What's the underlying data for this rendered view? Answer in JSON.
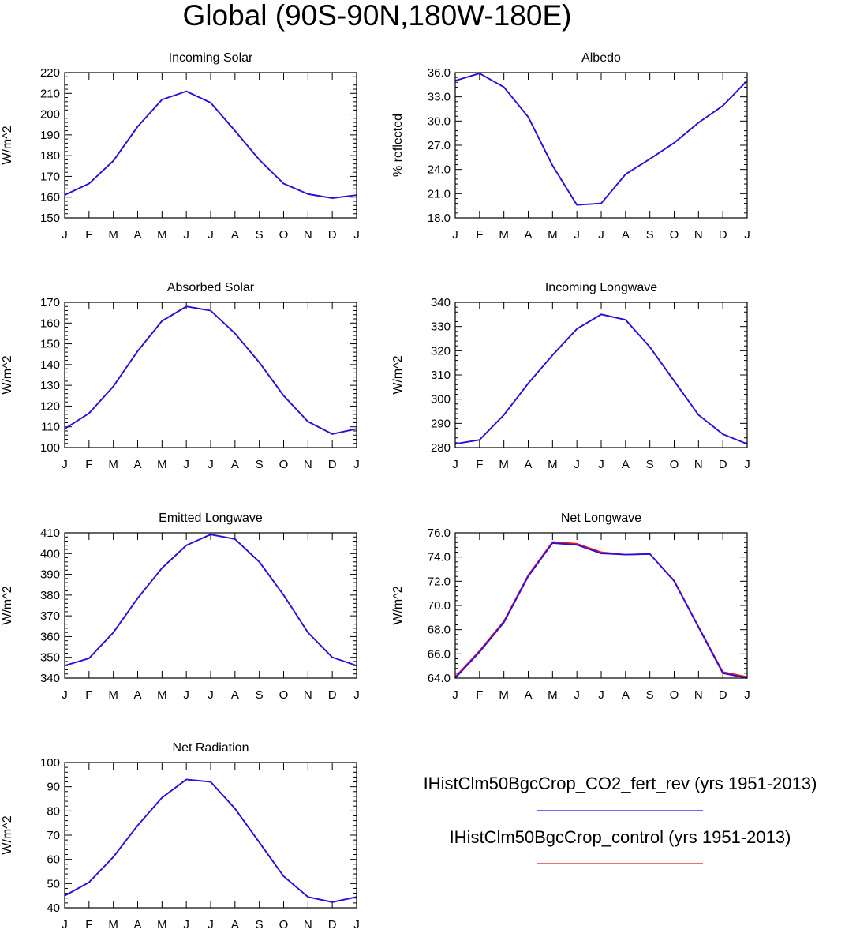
{
  "title": "Global (90S-90N,180W-180E)",
  "legend": [
    {
      "label": "IHistClm50BgcCrop_CO2_fert_rev (yrs 1951-2013)",
      "color": "#2b0ce6"
    },
    {
      "label": "IHistClm50BgcCrop_control (yrs 1951-2013)",
      "color": "#e11a1a"
    }
  ],
  "chart_data": [
    {
      "type": "line",
      "title": "Incoming Solar",
      "ylabel": "W/m^2",
      "categories": [
        "J",
        "F",
        "M",
        "A",
        "M",
        "J",
        "J",
        "A",
        "S",
        "O",
        "N",
        "D",
        "J"
      ],
      "ylim": [
        150,
        220
      ],
      "yticks": [
        "150",
        "160",
        "170",
        "180",
        "190",
        "200",
        "210",
        "220"
      ],
      "series": [
        {
          "name": "IHistClm50BgcCrop_CO2_fert_rev (yrs 1951-2013)",
          "color": "#2b0ce6",
          "values": [
            161,
            166.5,
            177.5,
            194,
            207,
            211,
            205.5,
            192,
            178,
            166.5,
            161.5,
            159.5,
            161
          ]
        },
        {
          "name": "IHistClm50BgcCrop_control (yrs 1951-2013)",
          "color": "#e11a1a",
          "values": [
            161,
            166.5,
            177.5,
            194,
            207,
            211,
            205.5,
            192,
            178,
            166.5,
            161.5,
            159.5,
            161
          ]
        }
      ]
    },
    {
      "type": "line",
      "title": "Albedo",
      "ylabel": "% reflected",
      "categories": [
        "J",
        "F",
        "M",
        "A",
        "M",
        "J",
        "J",
        "A",
        "S",
        "O",
        "N",
        "D",
        "J"
      ],
      "ylim": [
        18,
        36
      ],
      "yticks": [
        "18.0",
        "21.0",
        "24.0",
        "27.0",
        "30.0",
        "33.0",
        "36.0"
      ],
      "series": [
        {
          "name": "IHistClm50BgcCrop_CO2_fert_rev (yrs 1951-2013)",
          "color": "#2b0ce6",
          "values": [
            35.0,
            35.9,
            34.2,
            30.5,
            24.5,
            19.6,
            19.8,
            23.4,
            25.3,
            27.3,
            29.8,
            31.9,
            35.0
          ]
        },
        {
          "name": "IHistClm50BgcCrop_control (yrs 1951-2013)",
          "color": "#e11a1a",
          "values": [
            35.0,
            35.9,
            34.2,
            30.5,
            24.5,
            19.6,
            19.8,
            23.4,
            25.3,
            27.3,
            29.8,
            31.9,
            35.0
          ]
        }
      ]
    },
    {
      "type": "line",
      "title": "Absorbed Solar",
      "ylabel": "W/m^2",
      "categories": [
        "J",
        "F",
        "M",
        "A",
        "M",
        "J",
        "J",
        "A",
        "S",
        "O",
        "N",
        "D",
        "J"
      ],
      "ylim": [
        100,
        170
      ],
      "yticks": [
        "100",
        "110",
        "120",
        "130",
        "140",
        "150",
        "160",
        "170"
      ],
      "series": [
        {
          "name": "IHistClm50BgcCrop_CO2_fert_rev (yrs 1951-2013)",
          "color": "#2b0ce6",
          "values": [
            109,
            116.5,
            129.5,
            146.5,
            161,
            168,
            166,
            155,
            141,
            125,
            112.5,
            106.5,
            109
          ]
        },
        {
          "name": "IHistClm50BgcCrop_control (yrs 1951-2013)",
          "color": "#e11a1a",
          "values": [
            109,
            116.5,
            129.5,
            146.5,
            161,
            168,
            166,
            155,
            141,
            125,
            112.5,
            106.5,
            109
          ]
        }
      ]
    },
    {
      "type": "line",
      "title": "Incoming Longwave",
      "ylabel": "W/m^2",
      "categories": [
        "J",
        "F",
        "M",
        "A",
        "M",
        "J",
        "J",
        "A",
        "S",
        "O",
        "N",
        "D",
        "J"
      ],
      "ylim": [
        280,
        340
      ],
      "yticks": [
        "280",
        "290",
        "300",
        "310",
        "320",
        "330",
        "340"
      ],
      "series": [
        {
          "name": "IHistClm50BgcCrop_CO2_fert_rev (yrs 1951-2013)",
          "color": "#2b0ce6",
          "values": [
            281.5,
            283.2,
            293.5,
            306.5,
            318.2,
            329,
            335,
            332.8,
            321.5,
            307.5,
            293.5,
            285.5,
            281.5
          ]
        },
        {
          "name": "IHistClm50BgcCrop_control (yrs 1951-2013)",
          "color": "#e11a1a",
          "values": [
            281.5,
            283.2,
            293.5,
            306.5,
            318.2,
            329,
            335,
            332.8,
            321.5,
            307.5,
            293.5,
            285.5,
            281.5
          ]
        }
      ]
    },
    {
      "type": "line",
      "title": "Emitted Longwave",
      "ylabel": "W/m^2",
      "categories": [
        "J",
        "F",
        "M",
        "A",
        "M",
        "J",
        "J",
        "A",
        "S",
        "O",
        "N",
        "D",
        "J"
      ],
      "ylim": [
        340,
        410
      ],
      "yticks": [
        "340",
        "350",
        "360",
        "370",
        "380",
        "390",
        "400",
        "410"
      ],
      "series": [
        {
          "name": "IHistClm50BgcCrop_CO2_fert_rev (yrs 1951-2013)",
          "color": "#2b0ce6",
          "values": [
            346,
            349.5,
            362,
            378.5,
            393,
            404,
            409.2,
            407,
            396,
            380,
            362,
            350,
            346
          ]
        },
        {
          "name": "IHistClm50BgcCrop_control (yrs 1951-2013)",
          "color": "#e11a1a",
          "values": [
            346,
            349.5,
            362,
            378.5,
            393,
            404,
            409.2,
            407,
            396,
            380,
            362,
            350,
            346
          ]
        }
      ]
    },
    {
      "type": "line",
      "title": "Net Longwave",
      "ylabel": "W/m^2",
      "categories": [
        "J",
        "F",
        "M",
        "A",
        "M",
        "J",
        "J",
        "A",
        "S",
        "O",
        "N",
        "D",
        "J"
      ],
      "ylim": [
        64,
        76
      ],
      "yticks": [
        "64.0",
        "66.0",
        "68.0",
        "70.0",
        "72.0",
        "74.0",
        "76.0"
      ],
      "series": [
        {
          "name": "IHistClm50BgcCrop_control (yrs 1951-2013)",
          "color": "#e11a1a",
          "values": [
            64.1,
            66.25,
            68.7,
            72.5,
            75.25,
            75.1,
            74.4,
            74.2,
            74.25,
            72.05,
            68.25,
            64.5,
            64.1
          ]
        },
        {
          "name": "IHistClm50BgcCrop_CO2_fert_rev (yrs 1951-2013)",
          "color": "#2b0ce6",
          "values": [
            64.0,
            66.15,
            68.6,
            72.4,
            75.15,
            75.0,
            74.3,
            74.2,
            74.25,
            72.0,
            68.2,
            64.4,
            64.0
          ]
        }
      ]
    },
    {
      "type": "line",
      "title": "Net Radiation",
      "ylabel": "W/m^2",
      "categories": [
        "J",
        "F",
        "M",
        "A",
        "M",
        "J",
        "J",
        "A",
        "S",
        "O",
        "N",
        "D",
        "J"
      ],
      "ylim": [
        40,
        100
      ],
      "yticks": [
        "40",
        "50",
        "60",
        "70",
        "80",
        "90",
        "100"
      ],
      "series": [
        {
          "name": "IHistClm50BgcCrop_CO2_fert_rev (yrs 1951-2013)",
          "color": "#2b0ce6",
          "values": [
            45,
            50.5,
            61,
            74,
            85.5,
            93,
            92,
            81,
            67,
            53,
            44.5,
            42.3,
            44.5
          ]
        },
        {
          "name": "IHistClm50BgcCrop_control (yrs 1951-2013)",
          "color": "#e11a1a",
          "values": [
            45,
            50.5,
            61,
            74,
            85.5,
            93,
            92,
            81,
            67,
            53,
            44.5,
            42.3,
            44.5
          ]
        }
      ]
    }
  ]
}
